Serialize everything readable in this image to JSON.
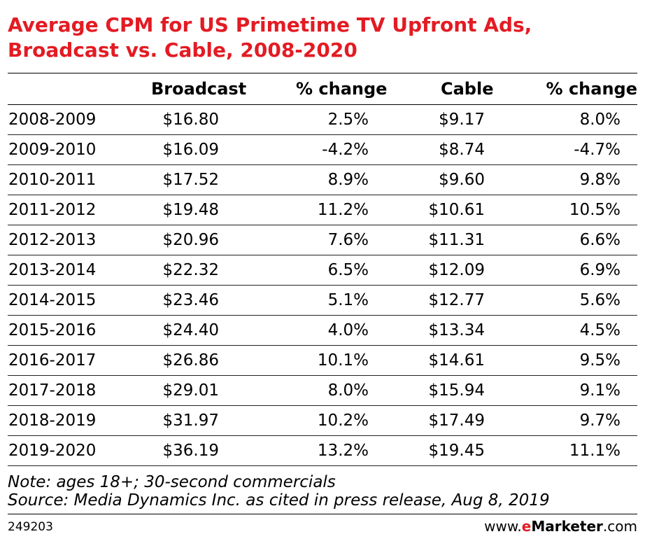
{
  "title_lines": [
    "Average CPM for US Primetime TV Upfront Ads,",
    "Broadcast vs. Cable, 2008-2020"
  ],
  "chart_data": {
    "type": "table",
    "title": "Average CPM for US Primetime TV Upfront Ads, Broadcast vs. Cable, 2008-2020",
    "columns": [
      "",
      "Broadcast",
      "% change",
      "Cable",
      "% change"
    ],
    "rows": [
      [
        "2008-2009",
        "$16.80",
        "2.5%",
        "$9.17",
        "8.0%"
      ],
      [
        "2009-2010",
        "$16.09",
        "-4.2%",
        "$8.74",
        "-4.7%"
      ],
      [
        "2010-2011",
        "$17.52",
        "8.9%",
        "$9.60",
        "9.8%"
      ],
      [
        "2011-2012",
        "$19.48",
        "11.2%",
        "$10.61",
        "10.5%"
      ],
      [
        "2012-2013",
        "$20.96",
        "7.6%",
        "$11.31",
        "6.6%"
      ],
      [
        "2013-2014",
        "$22.32",
        "6.5%",
        "$12.09",
        "6.9%"
      ],
      [
        "2014-2015",
        "$23.46",
        "5.1%",
        "$12.77",
        "5.6%"
      ],
      [
        "2015-2016",
        "$24.40",
        "4.0%",
        "$13.34",
        "4.5%"
      ],
      [
        "2016-2017",
        "$26.86",
        "10.1%",
        "$14.61",
        "9.5%"
      ],
      [
        "2017-2018",
        "$29.01",
        "8.0%",
        "$15.94",
        "9.1%"
      ],
      [
        "2018-2019",
        "$31.97",
        "10.2%",
        "$17.49",
        "9.7%"
      ],
      [
        "2019-2020",
        "$36.19",
        "13.2%",
        "$19.45",
        "11.1%"
      ]
    ]
  },
  "notes": [
    "Note: ages 18+; 30-second commercials",
    "Source: Media Dynamics Inc. as cited in press release, Aug 8, 2019"
  ],
  "footer": {
    "id": "249203",
    "brand_prefix": "www.",
    "brand_e": "e",
    "brand_name": "Marketer",
    "brand_suffix": ".com"
  },
  "colors": {
    "accent": "#e31b23",
    "text": "#000000"
  }
}
